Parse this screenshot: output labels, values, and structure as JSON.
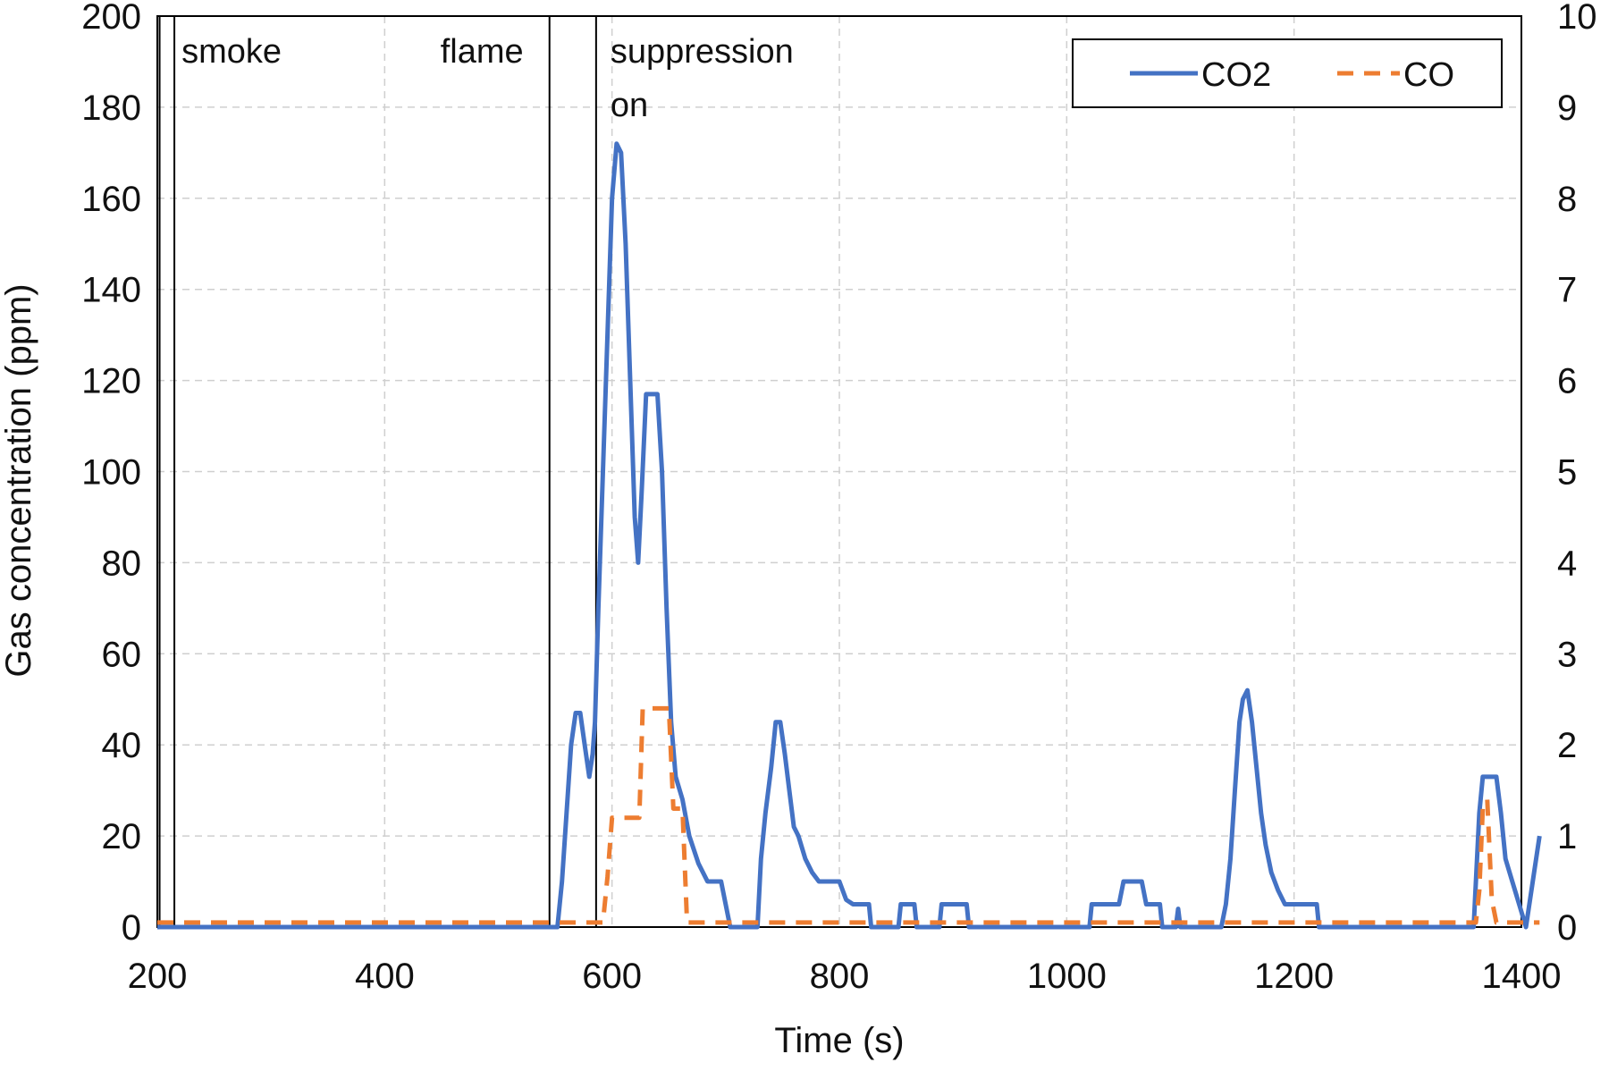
{
  "chart_data": {
    "type": "line",
    "title": "",
    "xlabel": "Time (s)",
    "ylabel": "Gas concentration (ppm)",
    "xlim": [
      200,
      1400
    ],
    "ylim": [
      0,
      200
    ],
    "y2lim": [
      0,
      10
    ],
    "x_ticks": [
      "200",
      "400",
      "600",
      "800",
      "1000",
      "1200",
      "1400"
    ],
    "y_ticks": [
      "0",
      "20",
      "40",
      "60",
      "80",
      "100",
      "120",
      "140",
      "160",
      "180",
      "200"
    ],
    "y2_ticks": [
      "0",
      "1",
      "2",
      "3",
      "4",
      "5",
      "6",
      "7",
      "8",
      "9",
      "10"
    ],
    "grid": true,
    "legend_position": "top-right",
    "events": [
      {
        "x": 202,
        "label_lines": []
      },
      {
        "x": 215,
        "label_lines": [
          "smoke"
        ]
      },
      {
        "x": 545,
        "label_lines": [
          "flame"
        ]
      },
      {
        "x": 586,
        "label_lines": [
          "suppression",
          "on"
        ]
      }
    ],
    "series": [
      {
        "name": "CO2",
        "axis": "left",
        "color": "#4472C4",
        "dash": "solid",
        "points": [
          [
            200,
            0
          ],
          [
            552,
            0
          ],
          [
            556,
            10
          ],
          [
            560,
            25
          ],
          [
            564,
            40
          ],
          [
            568,
            47
          ],
          [
            572,
            47
          ],
          [
            576,
            40
          ],
          [
            580,
            33
          ],
          [
            583,
            38
          ],
          [
            585,
            45
          ],
          [
            588,
            70
          ],
          [
            592,
            100
          ],
          [
            596,
            130
          ],
          [
            600,
            160
          ],
          [
            604,
            172
          ],
          [
            608,
            170
          ],
          [
            612,
            150
          ],
          [
            616,
            120
          ],
          [
            620,
            90
          ],
          [
            623,
            80
          ],
          [
            626,
            95
          ],
          [
            630,
            117
          ],
          [
            640,
            117
          ],
          [
            644,
            100
          ],
          [
            648,
            70
          ],
          [
            652,
            45
          ],
          [
            656,
            33
          ],
          [
            662,
            28
          ],
          [
            668,
            20
          ],
          [
            676,
            14
          ],
          [
            684,
            10
          ],
          [
            696,
            10
          ],
          [
            700,
            5
          ],
          [
            704,
            0
          ],
          [
            728,
            0
          ],
          [
            731,
            15
          ],
          [
            735,
            25
          ],
          [
            740,
            35
          ],
          [
            744,
            45
          ],
          [
            748,
            45
          ],
          [
            752,
            38
          ],
          [
            756,
            30
          ],
          [
            760,
            22
          ],
          [
            764,
            20
          ],
          [
            770,
            15
          ],
          [
            776,
            12
          ],
          [
            782,
            10
          ],
          [
            800,
            10
          ],
          [
            806,
            6
          ],
          [
            812,
            5
          ],
          [
            826,
            5
          ],
          [
            828,
            0
          ],
          [
            852,
            0
          ],
          [
            854,
            5
          ],
          [
            866,
            5
          ],
          [
            868,
            0
          ],
          [
            888,
            0
          ],
          [
            890,
            5
          ],
          [
            912,
            5
          ],
          [
            914,
            0
          ],
          [
            1020,
            0
          ],
          [
            1022,
            5
          ],
          [
            1046,
            5
          ],
          [
            1050,
            10
          ],
          [
            1066,
            10
          ],
          [
            1070,
            5
          ],
          [
            1082,
            5
          ],
          [
            1084,
            0
          ],
          [
            1096,
            0
          ],
          [
            1098,
            4
          ],
          [
            1100,
            0
          ],
          [
            1136,
            0
          ],
          [
            1140,
            5
          ],
          [
            1144,
            15
          ],
          [
            1148,
            30
          ],
          [
            1152,
            45
          ],
          [
            1155,
            50
          ],
          [
            1159,
            52
          ],
          [
            1163,
            45
          ],
          [
            1167,
            35
          ],
          [
            1171,
            25
          ],
          [
            1175,
            18
          ],
          [
            1180,
            12
          ],
          [
            1186,
            8
          ],
          [
            1192,
            5
          ],
          [
            1220,
            5
          ],
          [
            1222,
            0
          ],
          [
            1358,
            0
          ],
          [
            1360,
            10
          ],
          [
            1363,
            25
          ],
          [
            1366,
            33
          ],
          [
            1378,
            33
          ],
          [
            1382,
            25
          ],
          [
            1386,
            15
          ],
          [
            1392,
            10
          ],
          [
            1398,
            5
          ],
          [
            1404,
            0
          ],
          [
            1410,
            10
          ],
          [
            1416,
            20
          ]
        ]
      },
      {
        "name": "CO",
        "axis": "right",
        "color": "#ED7D31",
        "dash": "dashed",
        "points": [
          [
            200,
            0.05
          ],
          [
            592,
            0.05
          ],
          [
            596,
            0.55
          ],
          [
            600,
            1.2
          ],
          [
            620,
            1.2
          ],
          [
            624,
            1.2
          ],
          [
            627,
            2.4
          ],
          [
            650,
            2.4
          ],
          [
            654,
            1.3
          ],
          [
            662,
            1.3
          ],
          [
            666,
            0.05
          ],
          [
            1360,
            0.05
          ],
          [
            1363,
            0.4
          ],
          [
            1366,
            1.3
          ],
          [
            1370,
            1.4
          ],
          [
            1374,
            0.3
          ],
          [
            1378,
            0.05
          ],
          [
            1400,
            0.05
          ],
          [
            1416,
            0.05
          ]
        ]
      }
    ]
  }
}
